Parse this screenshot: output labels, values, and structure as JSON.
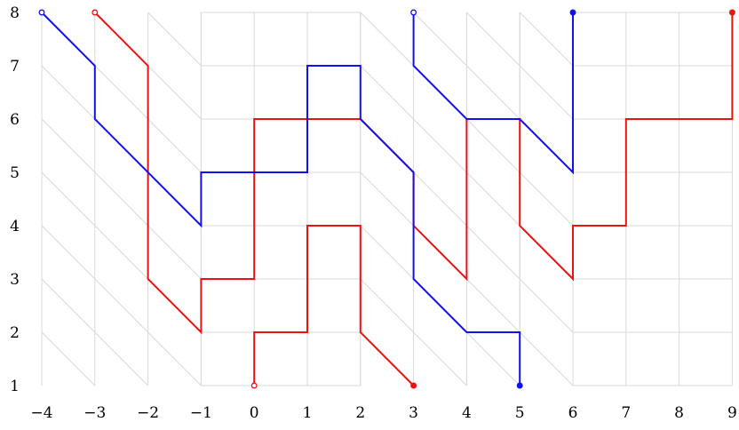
{
  "diagram": {
    "x_ticks": [
      "−4",
      "−3",
      "−2",
      "−1",
      "0",
      "1",
      "2",
      "3",
      "4",
      "5",
      "6",
      "7",
      "8",
      "9"
    ],
    "y_ticks": [
      "1",
      "2",
      "3",
      "4",
      "5",
      "6",
      "7",
      "8"
    ],
    "colors": {
      "grid": "#d9d9d9",
      "red": "#ee1111",
      "blue": "#1111ee"
    },
    "grid_regions": [
      {
        "x_from": -4,
        "x_to": -1,
        "diagonal_lines": true
      },
      {
        "x_from": -1,
        "x_to": 2,
        "square_grid": true
      },
      {
        "x_from": 2,
        "x_to": 5,
        "diagonal_lines": true
      },
      {
        "x_from": 5,
        "x_to": 6,
        "diagonal_lines": true
      },
      {
        "x_from": 6,
        "x_to": 9,
        "square_grid": true
      }
    ],
    "paths": [
      {
        "name": "red-path-1",
        "color": "red",
        "start_marker": "open",
        "end_marker": "filled",
        "points": [
          [
            -3,
            8
          ],
          [
            -2,
            7
          ],
          [
            -2,
            3
          ],
          [
            -1,
            2
          ],
          [
            -1,
            3
          ],
          [
            0,
            3
          ],
          [
            0,
            6
          ],
          [
            2,
            6
          ],
          [
            3,
            5
          ],
          [
            3,
            4
          ],
          [
            4,
            3
          ],
          [
            4,
            6
          ],
          [
            5,
            6
          ],
          [
            5,
            4
          ],
          [
            6,
            3
          ],
          [
            6,
            4
          ],
          [
            7,
            4
          ],
          [
            7,
            6
          ],
          [
            9,
            6
          ],
          [
            9,
            8
          ]
        ]
      },
      {
        "name": "red-path-2",
        "color": "red",
        "start_marker": "open",
        "end_marker": "filled",
        "points": [
          [
            0,
            1
          ],
          [
            0,
            2
          ],
          [
            1,
            2
          ],
          [
            1,
            4
          ],
          [
            2,
            4
          ],
          [
            2,
            2
          ],
          [
            3,
            1
          ]
        ]
      },
      {
        "name": "blue-path-1",
        "color": "blue",
        "start_marker": "open",
        "end_marker": "filled",
        "points": [
          [
            -4,
            8
          ],
          [
            -3,
            7
          ],
          [
            -3,
            6
          ],
          [
            -1,
            4
          ],
          [
            -1,
            5
          ],
          [
            1,
            5
          ],
          [
            1,
            7
          ],
          [
            2,
            7
          ],
          [
            2,
            6
          ],
          [
            3,
            5
          ],
          [
            3,
            3
          ],
          [
            4,
            2
          ],
          [
            5,
            2
          ],
          [
            5,
            1
          ]
        ]
      },
      {
        "name": "blue-path-2",
        "color": "blue",
        "start_marker": "open",
        "end_marker": "filled",
        "points": [
          [
            3,
            8
          ],
          [
            3,
            7
          ],
          [
            4,
            6
          ],
          [
            5,
            6
          ],
          [
            6,
            5
          ],
          [
            6,
            8
          ]
        ]
      }
    ]
  }
}
